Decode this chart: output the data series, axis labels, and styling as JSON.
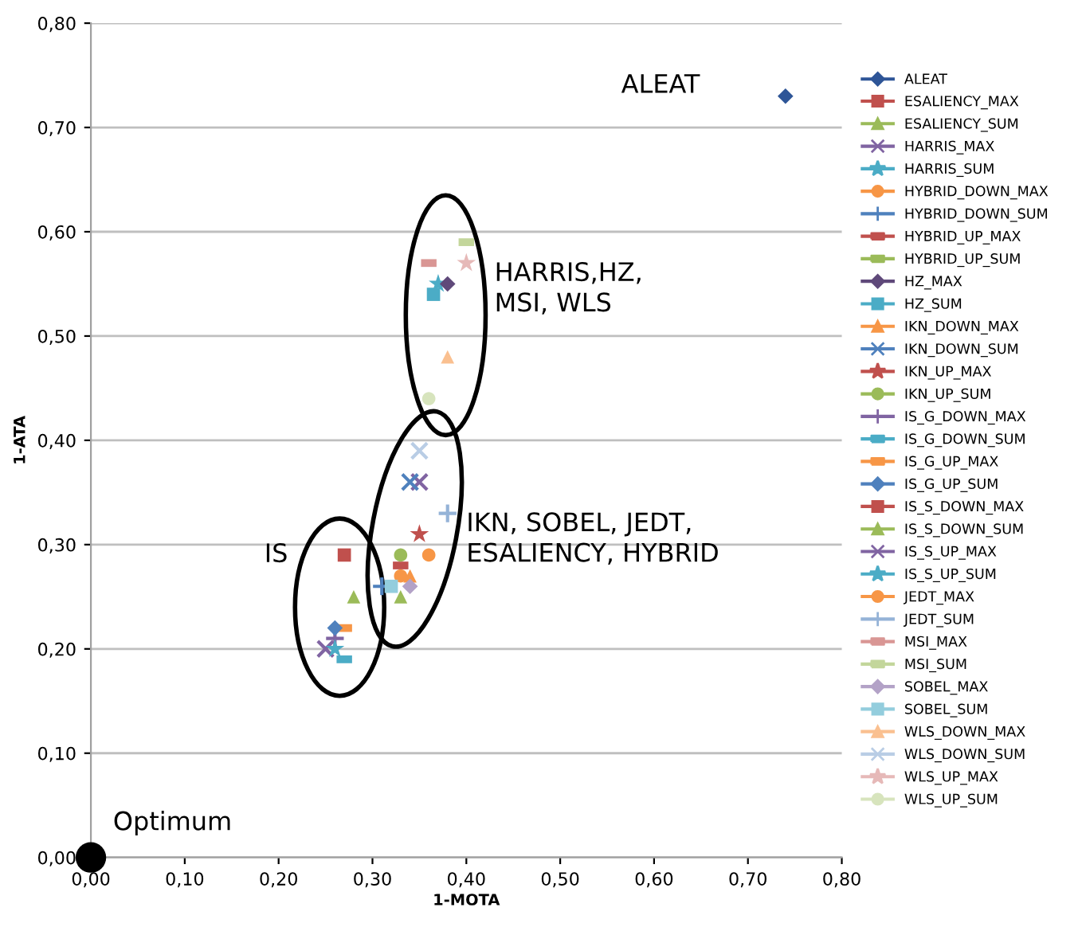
{
  "chart_data": {
    "type": "scatter",
    "xlabel": "1-MOTA",
    "ylabel": "1-ATA",
    "xlim": [
      0,
      0.8
    ],
    "ylim": [
      0,
      0.8
    ],
    "xticks": [
      {
        "value": 0,
        "label": "0,00"
      },
      {
        "value": 0.1,
        "label": "0,10"
      },
      {
        "value": 0.2,
        "label": "0,20"
      },
      {
        "value": 0.3,
        "label": "0,30"
      },
      {
        "value": 0.4,
        "label": "0,40"
      },
      {
        "value": 0.5,
        "label": "0,50"
      },
      {
        "value": 0.6,
        "label": "0,60"
      },
      {
        "value": 0.7,
        "label": "0,70"
      },
      {
        "value": 0.8,
        "label": "0,80"
      }
    ],
    "yticks": [
      {
        "value": 0,
        "label": "0,00"
      },
      {
        "value": 0.1,
        "label": "0,10"
      },
      {
        "value": 0.2,
        "label": "0,20"
      },
      {
        "value": 0.3,
        "label": "0,30"
      },
      {
        "value": 0.4,
        "label": "0,40"
      },
      {
        "value": 0.5,
        "label": "0,50"
      },
      {
        "value": 0.6,
        "label": "0,60"
      },
      {
        "value": 0.7,
        "label": "0,70"
      },
      {
        "value": 0.8,
        "label": "0,80"
      }
    ],
    "grid": "y",
    "legend": "right",
    "series": [
      {
        "name": "ALEAT",
        "color": "#2e5597",
        "marker": "diamond",
        "x": [
          0.74
        ],
        "values": [
          0.73
        ]
      },
      {
        "name": "ESALIENCY_MAX",
        "color": "#c0504d",
        "marker": "square",
        "x": [
          null
        ],
        "values": [
          null
        ]
      },
      {
        "name": "ESALIENCY_SUM",
        "color": "#9bbb59",
        "marker": "triangle",
        "x": [
          0.33
        ],
        "values": [
          0.25
        ]
      },
      {
        "name": "HARRIS_MAX",
        "color": "#8064a2",
        "marker": "cross",
        "x": [
          0.35
        ],
        "values": [
          0.36
        ]
      },
      {
        "name": "HARRIS_SUM",
        "color": "#4bacc6",
        "marker": "star",
        "x": [
          0.37
        ],
        "values": [
          0.55
        ]
      },
      {
        "name": "HYBRID_DOWN_MAX",
        "color": "#f79646",
        "marker": "circle",
        "x": [
          0.33
        ],
        "values": [
          0.27
        ]
      },
      {
        "name": "HYBRID_DOWN_SUM",
        "color": "#4f81bd",
        "marker": "plus",
        "x": [
          0.31
        ],
        "values": [
          0.26
        ]
      },
      {
        "name": "HYBRID_UP_MAX",
        "color": "#c0504d",
        "x": [
          0.33
        ],
        "values": [
          0.28
        ]
      },
      {
        "name": "HYBRID_UP_SUM",
        "color": "#9bbb59",
        "x": [
          null
        ],
        "values": [
          null
        ]
      },
      {
        "name": "HZ_MAX",
        "color": "#5f497a",
        "marker": "diamond",
        "x": [
          0.38
        ],
        "values": [
          0.55
        ]
      },
      {
        "name": "HZ_SUM",
        "color": "#4bacc6",
        "marker": "square",
        "x": [
          0.365
        ],
        "values": [
          0.54
        ]
      },
      {
        "name": "IKN_DOWN_MAX",
        "color": "#f79646",
        "marker": "triangle",
        "x": [
          0.34
        ],
        "values": [
          0.27
        ]
      },
      {
        "name": "IKN_DOWN_SUM",
        "color": "#4f81bd",
        "marker": "cross",
        "x": [
          0.34
        ],
        "values": [
          0.36
        ]
      },
      {
        "name": "IKN_UP_MAX",
        "color": "#c0504d",
        "marker": "star",
        "x": [
          0.35
        ],
        "values": [
          0.31
        ]
      },
      {
        "name": "IKN_UP_SUM",
        "color": "#9bbb59",
        "marker": "circle",
        "x": [
          0.33
        ],
        "values": [
          0.29
        ]
      },
      {
        "name": "IS_G_DOWN_MAX",
        "color": "#8064a2",
        "marker": "plus",
        "x": [
          0.26
        ],
        "values": [
          0.21
        ]
      },
      {
        "name": "IS_G_DOWN_SUM",
        "color": "#4bacc6",
        "x": [
          0.27
        ],
        "values": [
          0.19
        ]
      },
      {
        "name": "IS_G_UP_MAX",
        "color": "#f79646",
        "x": [
          0.27
        ],
        "values": [
          0.22
        ]
      },
      {
        "name": "IS_G_UP_SUM",
        "color": "#4f81bd",
        "marker": "diamond",
        "x": [
          0.26
        ],
        "values": [
          0.22
        ]
      },
      {
        "name": "IS_S_DOWN_MAX",
        "color": "#c0504d",
        "marker": "square",
        "x": [
          0.27
        ],
        "values": [
          0.29
        ]
      },
      {
        "name": "IS_S_DOWN_SUM",
        "color": "#9bbb59",
        "marker": "triangle",
        "x": [
          0.28
        ],
        "values": [
          0.25
        ]
      },
      {
        "name": "IS_S_UP_MAX",
        "color": "#8064a2",
        "marker": "cross",
        "x": [
          0.25
        ],
        "values": [
          0.2
        ]
      },
      {
        "name": "IS_S_UP_SUM",
        "color": "#4bacc6",
        "marker": "star",
        "x": [
          0.26
        ],
        "values": [
          0.2
        ]
      },
      {
        "name": "JEDT_MAX",
        "color": "#f79646",
        "marker": "circle",
        "x": [
          0.36
        ],
        "values": [
          0.29
        ]
      },
      {
        "name": "JEDT_SUM",
        "color": "#95b3d7",
        "marker": "plus",
        "x": [
          0.38
        ],
        "values": [
          0.33
        ]
      },
      {
        "name": "MSI_MAX",
        "color": "#d99694",
        "x": [
          0.36
        ],
        "values": [
          0.57
        ]
      },
      {
        "name": "MSI_SUM",
        "color": "#c3d69b",
        "x": [
          0.4
        ],
        "values": [
          0.59
        ]
      },
      {
        "name": "SOBEL_MAX",
        "color": "#b3a2c7",
        "marker": "diamond",
        "x": [
          0.34
        ],
        "values": [
          0.26
        ]
      },
      {
        "name": "SOBEL_SUM",
        "color": "#93cddd",
        "marker": "square",
        "x": [
          0.32
        ],
        "values": [
          0.26
        ]
      },
      {
        "name": "WLS_DOWN_MAX",
        "color": "#fac090",
        "marker": "triangle",
        "x": [
          0.38
        ],
        "values": [
          0.48
        ]
      },
      {
        "name": "WLS_DOWN_SUM",
        "color": "#b9cde5",
        "marker": "cross",
        "x": [
          0.35
        ],
        "values": [
          0.39
        ]
      },
      {
        "name": "WLS_UP_MAX",
        "color": "#e6b9b8",
        "marker": "star",
        "x": [
          0.4
        ],
        "values": [
          0.57
        ]
      },
      {
        "name": "WLS_UP_SUM",
        "color": "#d7e4bd",
        "marker": "circle",
        "x": [
          0.36
        ],
        "values": [
          0.44
        ]
      },
      {
        "color": "#000000",
        "marker": "circle",
        "x": [
          0
        ],
        "values": [
          0
        ]
      }
    ],
    "annotations": [
      {
        "text": "Optimum",
        "x": 0,
        "y": 0
      },
      "ALEAT",
      "HARRIS,HZ,\nMSI, WLS",
      "IKN, SOBEL, JEDT,\nESALIENCY, HYBRID",
      "IS"
    ]
  }
}
